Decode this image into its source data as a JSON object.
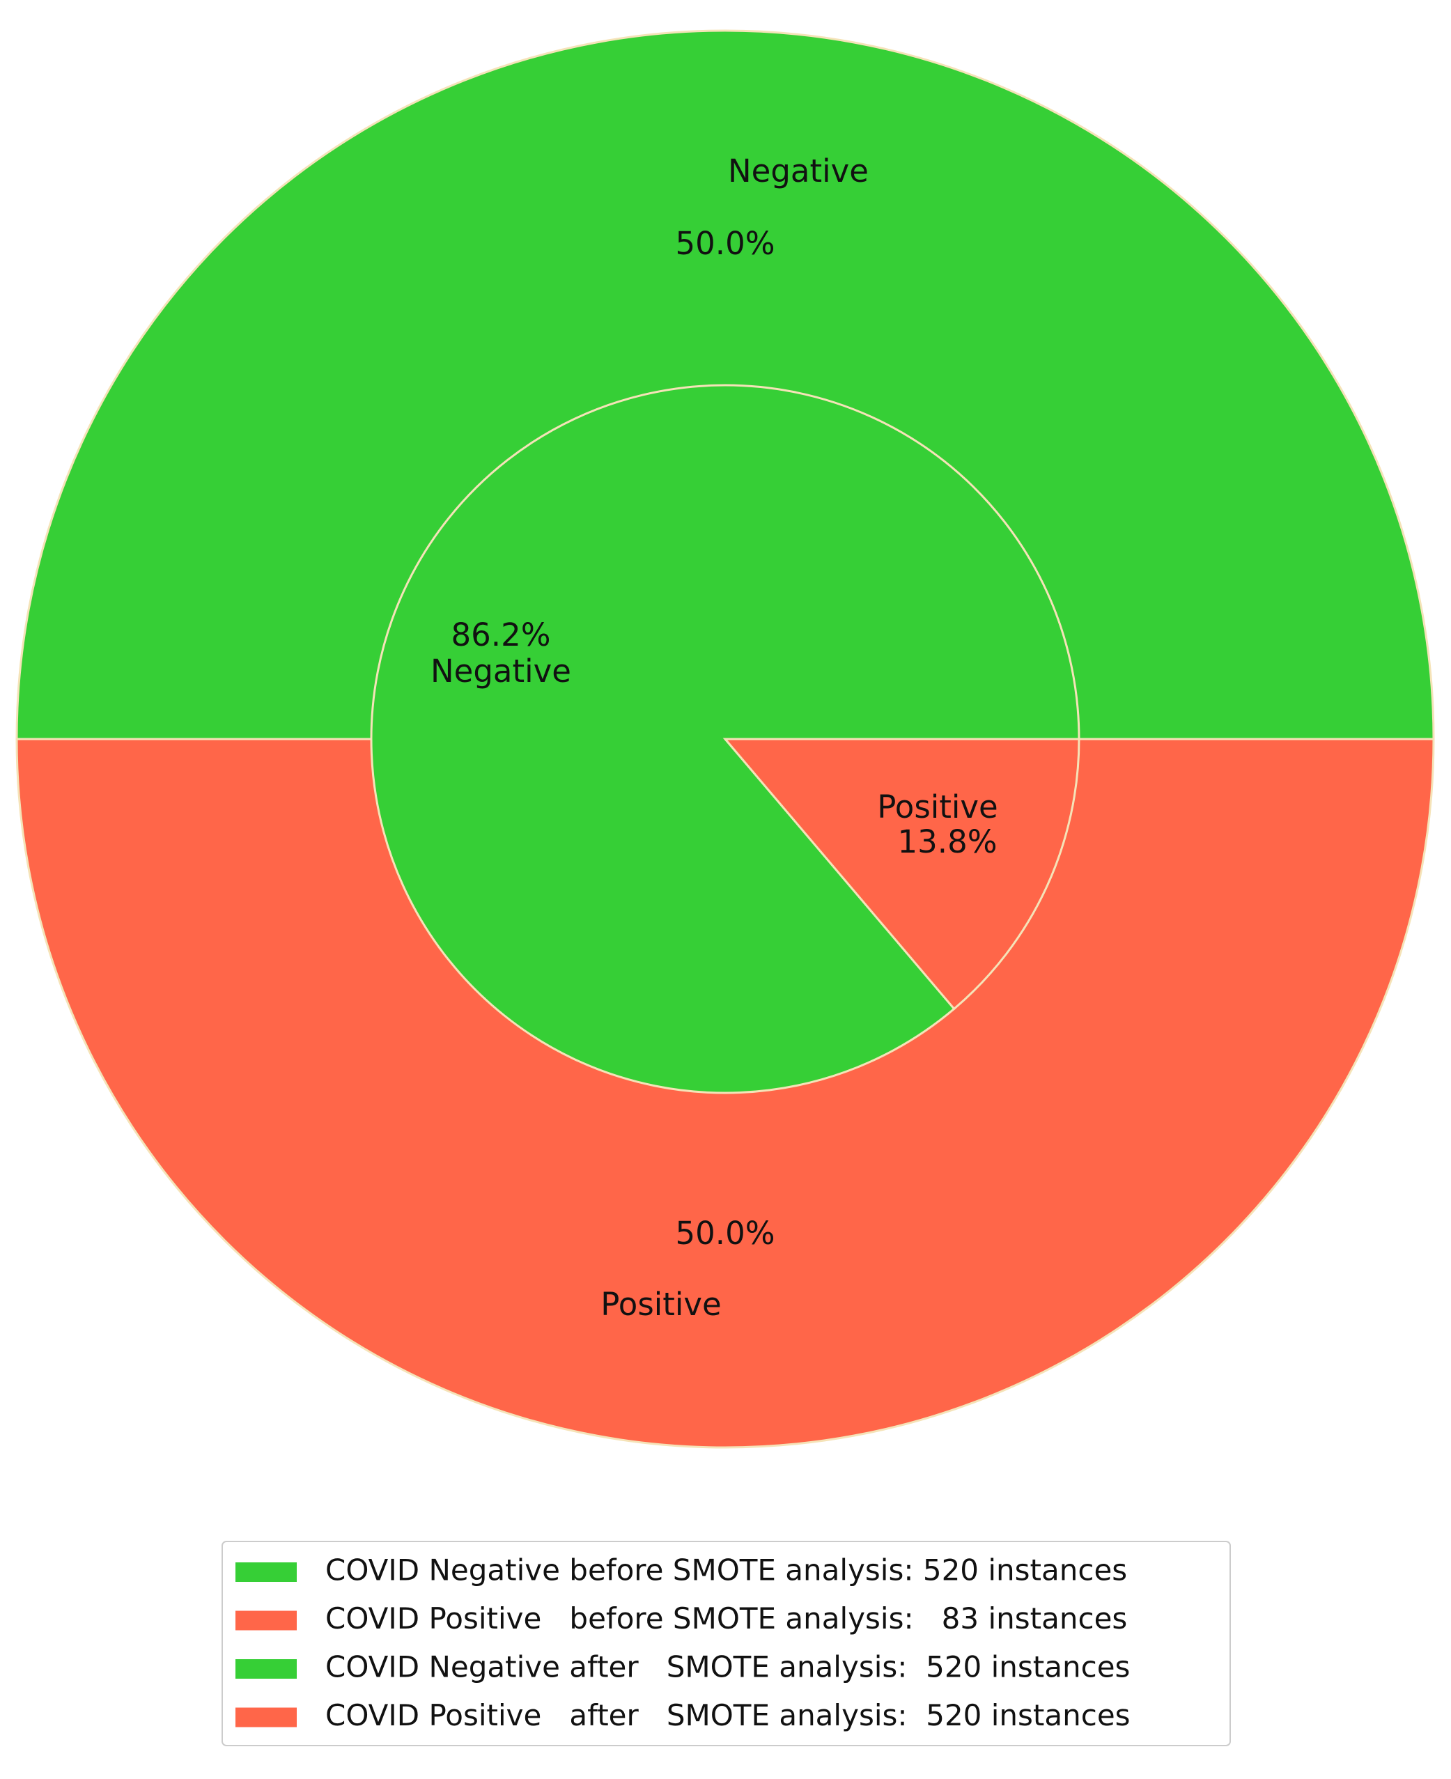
{
  "chart_data": {
    "type": "pie",
    "rings": [
      {
        "labels": [
          "Negative",
          "Positive"
        ],
        "values": [
          50.0,
          50.0
        ],
        "value_labels": [
          "50.0%",
          "50.0%"
        ],
        "colors": [
          "#36cf36",
          "#ff6649"
        ]
      },
      {
        "labels": [
          "Negative",
          "Positive"
        ],
        "values": [
          86.2,
          13.8
        ],
        "value_labels": [
          "86.2%",
          "13.8%"
        ],
        "colors": [
          "#36cf36",
          "#ff6649"
        ]
      }
    ],
    "legend": {
      "position": "lower center",
      "entries": [
        {
          "label": "COVID Negative before SMOTE analysis: 520 instances",
          "color": "#36cf36"
        },
        {
          "label": "COVID Positive   before SMOTE analysis:   83 instances",
          "color": "#ff6649"
        },
        {
          "label": "COVID Negative after   SMOTE analysis:  520 instances",
          "color": "#36cf36"
        },
        {
          "label": "COVID Positive   after   SMOTE analysis:  520 instances",
          "color": "#ff6649"
        }
      ]
    }
  }
}
